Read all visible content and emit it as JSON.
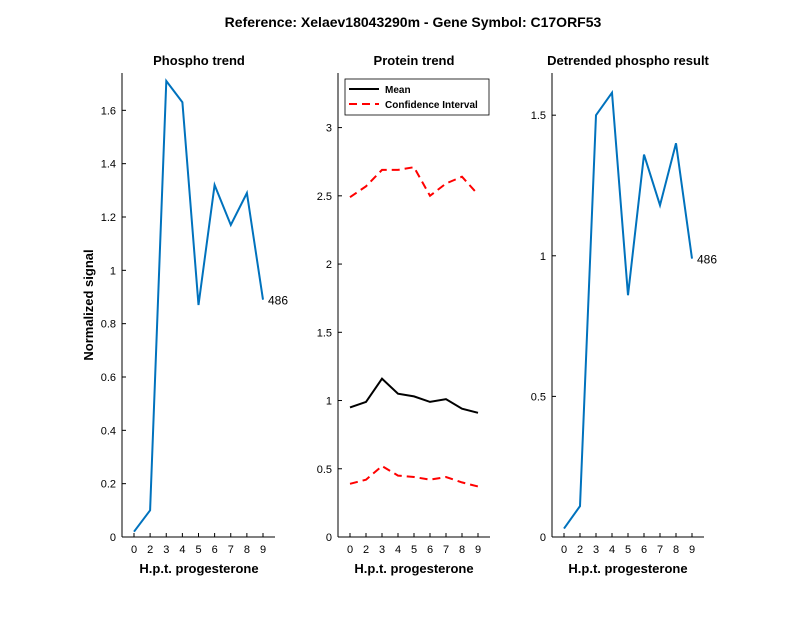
{
  "figure": {
    "suptitle": "Reference:  Xelaev18043290m - Gene Symbol:  C17ORF53",
    "colors": {
      "phospho": "#0072bd",
      "mean": "#000000",
      "ci": "#ff0000"
    }
  },
  "chart_data": [
    {
      "type": "line",
      "title": "Phospho trend",
      "xlabel": "H.p.t. progesterone",
      "ylabel": "Normalized signal",
      "x_ticks": [
        "0",
        "2",
        "3",
        "4",
        "5",
        "6",
        "7",
        "8",
        "9"
      ],
      "y_ticks": [
        "0",
        "0.2",
        "0.4",
        "0.6",
        "0.8",
        "1",
        "1.2",
        "1.4",
        "1.6"
      ],
      "ylim": [
        0,
        1.74
      ],
      "series": [
        {
          "values": [
            0.02,
            0.1,
            1.71,
            1.63,
            0.87,
            1.32,
            1.17,
            1.29,
            0.89
          ]
        }
      ],
      "annotation": "486"
    },
    {
      "type": "line",
      "title": "Protein trend",
      "xlabel": "H.p.t. progesterone",
      "ylabel": "",
      "x_ticks": [
        "0",
        "2",
        "3",
        "4",
        "5",
        "6",
        "7",
        "8",
        "9"
      ],
      "y_ticks": [
        "0",
        "0.5",
        "1",
        "1.5",
        "2",
        "2.5",
        "3"
      ],
      "ylim": [
        0,
        3.4
      ],
      "legend_position": "top-left",
      "series": [
        {
          "name": "Mean",
          "style": "solid",
          "values": [
            0.95,
            0.99,
            1.16,
            1.05,
            1.03,
            0.99,
            1.01,
            0.94,
            0.91
          ]
        },
        {
          "name": "Confidence Interval",
          "style": "dashed",
          "values": [
            2.49,
            2.57,
            2.69,
            2.69,
            2.71,
            2.5,
            2.59,
            2.64,
            2.51
          ]
        },
        {
          "name": "",
          "style": "dashed",
          "values": [
            0.39,
            0.42,
            0.52,
            0.45,
            0.44,
            0.42,
            0.44,
            0.4,
            0.37
          ]
        }
      ]
    },
    {
      "type": "line",
      "title": "Detrended phospho result",
      "xlabel": "H.p.t. progesterone",
      "ylabel": "",
      "x_ticks": [
        "0",
        "2",
        "3",
        "4",
        "5",
        "6",
        "7",
        "8",
        "9"
      ],
      "y_ticks": [
        "0",
        "0.5",
        "1",
        "1.5"
      ],
      "ylim": [
        0,
        1.65
      ],
      "series": [
        {
          "values": [
            0.03,
            0.11,
            1.5,
            1.58,
            0.86,
            1.36,
            1.18,
            1.4,
            0.99
          ]
        }
      ],
      "annotation": "486"
    }
  ]
}
